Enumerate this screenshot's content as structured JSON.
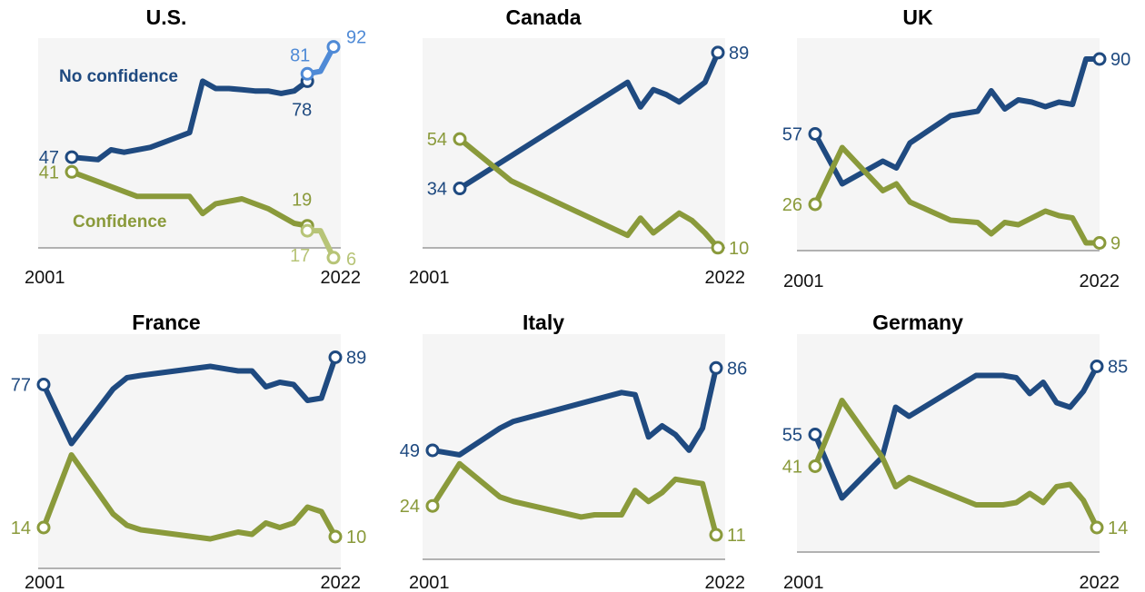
{
  "colors": {
    "no_confidence": "#1f4a80",
    "confidence": "#8a9a3b",
    "us_no_conf_alt": "#4f8ad6",
    "us_conf_alt": "#b7c477",
    "plot_bg": "#f5f5f5",
    "axis": "#9a9a9a"
  },
  "chart_data": [
    {
      "type": "line",
      "title": "U.S.",
      "x_start_label": "2001",
      "x_end_label": "2022",
      "xlim": [
        2002,
        2022
      ],
      "ylim": [
        0,
        100
      ],
      "series_labels": {
        "no_confidence": "No confidence",
        "confidence": "Confidence"
      },
      "series": [
        {
          "key": "no_confidence",
          "name": "No confidence",
          "x": [
            2002,
            2004,
            2005,
            2006,
            2008,
            2009,
            2010,
            2011,
            2012,
            2013,
            2014,
            2015,
            2016,
            2017,
            2018,
            2019,
            2020
          ],
          "values": [
            47,
            46,
            50,
            49,
            51,
            53,
            55,
            57,
            78,
            75,
            75,
            74.5,
            74,
            74,
            73,
            74,
            78
          ],
          "start_label": "47",
          "end_label": "78"
        },
        {
          "key": "confidence",
          "name": "Confidence",
          "x": [
            2002,
            2004,
            2005,
            2006,
            2007,
            2008,
            2009,
            2010,
            2011,
            2012,
            2013,
            2014,
            2015,
            2016,
            2017,
            2018,
            2019,
            2020
          ],
          "values": [
            41,
            37,
            35,
            33,
            31,
            31,
            31,
            31,
            31,
            24,
            28,
            29,
            30,
            28,
            26,
            23,
            20,
            19
          ],
          "start_label": "41",
          "end_label": "19"
        },
        {
          "key": "us_no_conf_alt",
          "x": [
            2020,
            2021,
            2022
          ],
          "values": [
            81,
            82,
            92
          ],
          "start_label": "81",
          "end_label": "92"
        },
        {
          "key": "us_conf_alt",
          "x": [
            2020,
            2021,
            2022
          ],
          "values": [
            17,
            17,
            6
          ],
          "start_label": "17",
          "end_label": "6"
        }
      ]
    },
    {
      "type": "line",
      "title": "Canada",
      "x_start_label": "2001",
      "x_end_label": "2022",
      "xlim": [
        2002,
        2022
      ],
      "ylim": [
        0,
        100
      ],
      "series": [
        {
          "key": "no_confidence",
          "x": [
            2002,
            2015,
            2016,
            2017,
            2018,
            2019,
            2020,
            2021,
            2022
          ],
          "values": [
            34,
            77,
            67,
            74,
            72,
            69,
            73,
            77,
            89
          ],
          "start_label": "34",
          "end_label": "89"
        },
        {
          "key": "confidence",
          "x": [
            2002,
            2006,
            2015,
            2016,
            2017,
            2018,
            2019,
            2020,
            2021,
            2022
          ],
          "values": [
            54,
            37,
            15,
            22,
            16,
            20,
            24,
            21,
            16,
            10
          ],
          "start_label": "54",
          "end_label": "10"
        }
      ]
    },
    {
      "type": "line",
      "title": "UK",
      "x_start_label": "2001",
      "x_end_label": "2022",
      "xlim": [
        2001,
        2022
      ],
      "ylim": [
        0,
        100
      ],
      "series": [
        {
          "key": "no_confidence",
          "x": [
            2001,
            2003,
            2006,
            2007,
            2008,
            2011,
            2013,
            2014,
            2015,
            2016,
            2017,
            2018,
            2019,
            2020,
            2021,
            2022
          ],
          "values": [
            57,
            35,
            45,
            42,
            53,
            65,
            67,
            76,
            68,
            72,
            71,
            69,
            71,
            70,
            90,
            90
          ],
          "start_label": "57",
          "end_label": "90"
        },
        {
          "key": "confidence",
          "x": [
            2001,
            2003,
            2006,
            2007,
            2008,
            2011,
            2013,
            2014,
            2015,
            2016,
            2017,
            2018,
            2019,
            2020,
            2021,
            2022
          ],
          "values": [
            26,
            51,
            32,
            35,
            27,
            19,
            18,
            13,
            18,
            17,
            20,
            23,
            21,
            20,
            9,
            9
          ],
          "start_label": "26",
          "end_label": "9"
        }
      ]
    },
    {
      "type": "line",
      "title": "France",
      "x_start_label": "2001",
      "x_end_label": "2022",
      "xlim": [
        2001,
        2022
      ],
      "ylim": [
        0,
        100
      ],
      "series": [
        {
          "key": "no_confidence",
          "x": [
            2001,
            2003,
            2006,
            2007,
            2008,
            2013,
            2015,
            2016,
            2017,
            2018,
            2019,
            2020,
            2021,
            2022
          ],
          "values": [
            77,
            51,
            75,
            80,
            81,
            85,
            83,
            83,
            76,
            78,
            77,
            70,
            71,
            89
          ],
          "start_label": "77",
          "end_label": "89"
        },
        {
          "key": "confidence",
          "x": [
            2001,
            2003,
            2006,
            2007,
            2008,
            2013,
            2015,
            2016,
            2017,
            2018,
            2019,
            2020,
            2021,
            2022
          ],
          "values": [
            14,
            46,
            20,
            15,
            13,
            9,
            12,
            11,
            16,
            14,
            16,
            23,
            21,
            10
          ],
          "start_label": "14",
          "end_label": "10"
        }
      ]
    },
    {
      "type": "line",
      "title": "Italy",
      "x_start_label": "2001",
      "x_end_label": "2022",
      "xlim": [
        2001,
        2022
      ],
      "ylim": [
        0,
        100
      ],
      "series": [
        {
          "key": "no_confidence",
          "x": [
            2001,
            2003,
            2006,
            2007,
            2015,
            2016,
            2017,
            2018,
            2019,
            2020,
            2021,
            2022
          ],
          "values": [
            49,
            47,
            59,
            62,
            75,
            74,
            55,
            60,
            56,
            49,
            59,
            86
          ],
          "start_label": "49",
          "end_label": "86"
        },
        {
          "key": "confidence",
          "x": [
            2001,
            2003,
            2006,
            2007,
            2012,
            2013,
            2015,
            2016,
            2017,
            2018,
            2019,
            2020,
            2021,
            2022
          ],
          "values": [
            24,
            43,
            28,
            26,
            19,
            20,
            20,
            31,
            26,
            30,
            36,
            35,
            34,
            11
          ],
          "start_label": "24",
          "end_label": "11"
        }
      ]
    },
    {
      "type": "line",
      "title": "Germany",
      "x_start_label": "2001",
      "x_end_label": "2022",
      "xlim": [
        2001,
        2022
      ],
      "ylim": [
        0,
        100
      ],
      "series": [
        {
          "key": "no_confidence",
          "x": [
            2001,
            2003,
            2006,
            2007,
            2008,
            2013,
            2015,
            2016,
            2017,
            2018,
            2019,
            2020,
            2021,
            2022
          ],
          "values": [
            55,
            27,
            45,
            67,
            63,
            81,
            81,
            80,
            73,
            78,
            69,
            67,
            74,
            85
          ],
          "start_label": "55",
          "end_label": "85"
        },
        {
          "key": "confidence",
          "x": [
            2001,
            2003,
            2006,
            2007,
            2008,
            2013,
            2015,
            2016,
            2017,
            2018,
            2019,
            2020,
            2021,
            2022
          ],
          "values": [
            41,
            70,
            45,
            32,
            36,
            24,
            24,
            25,
            29,
            25,
            32,
            33,
            26,
            14
          ],
          "start_label": "41",
          "end_label": "14"
        }
      ]
    }
  ]
}
